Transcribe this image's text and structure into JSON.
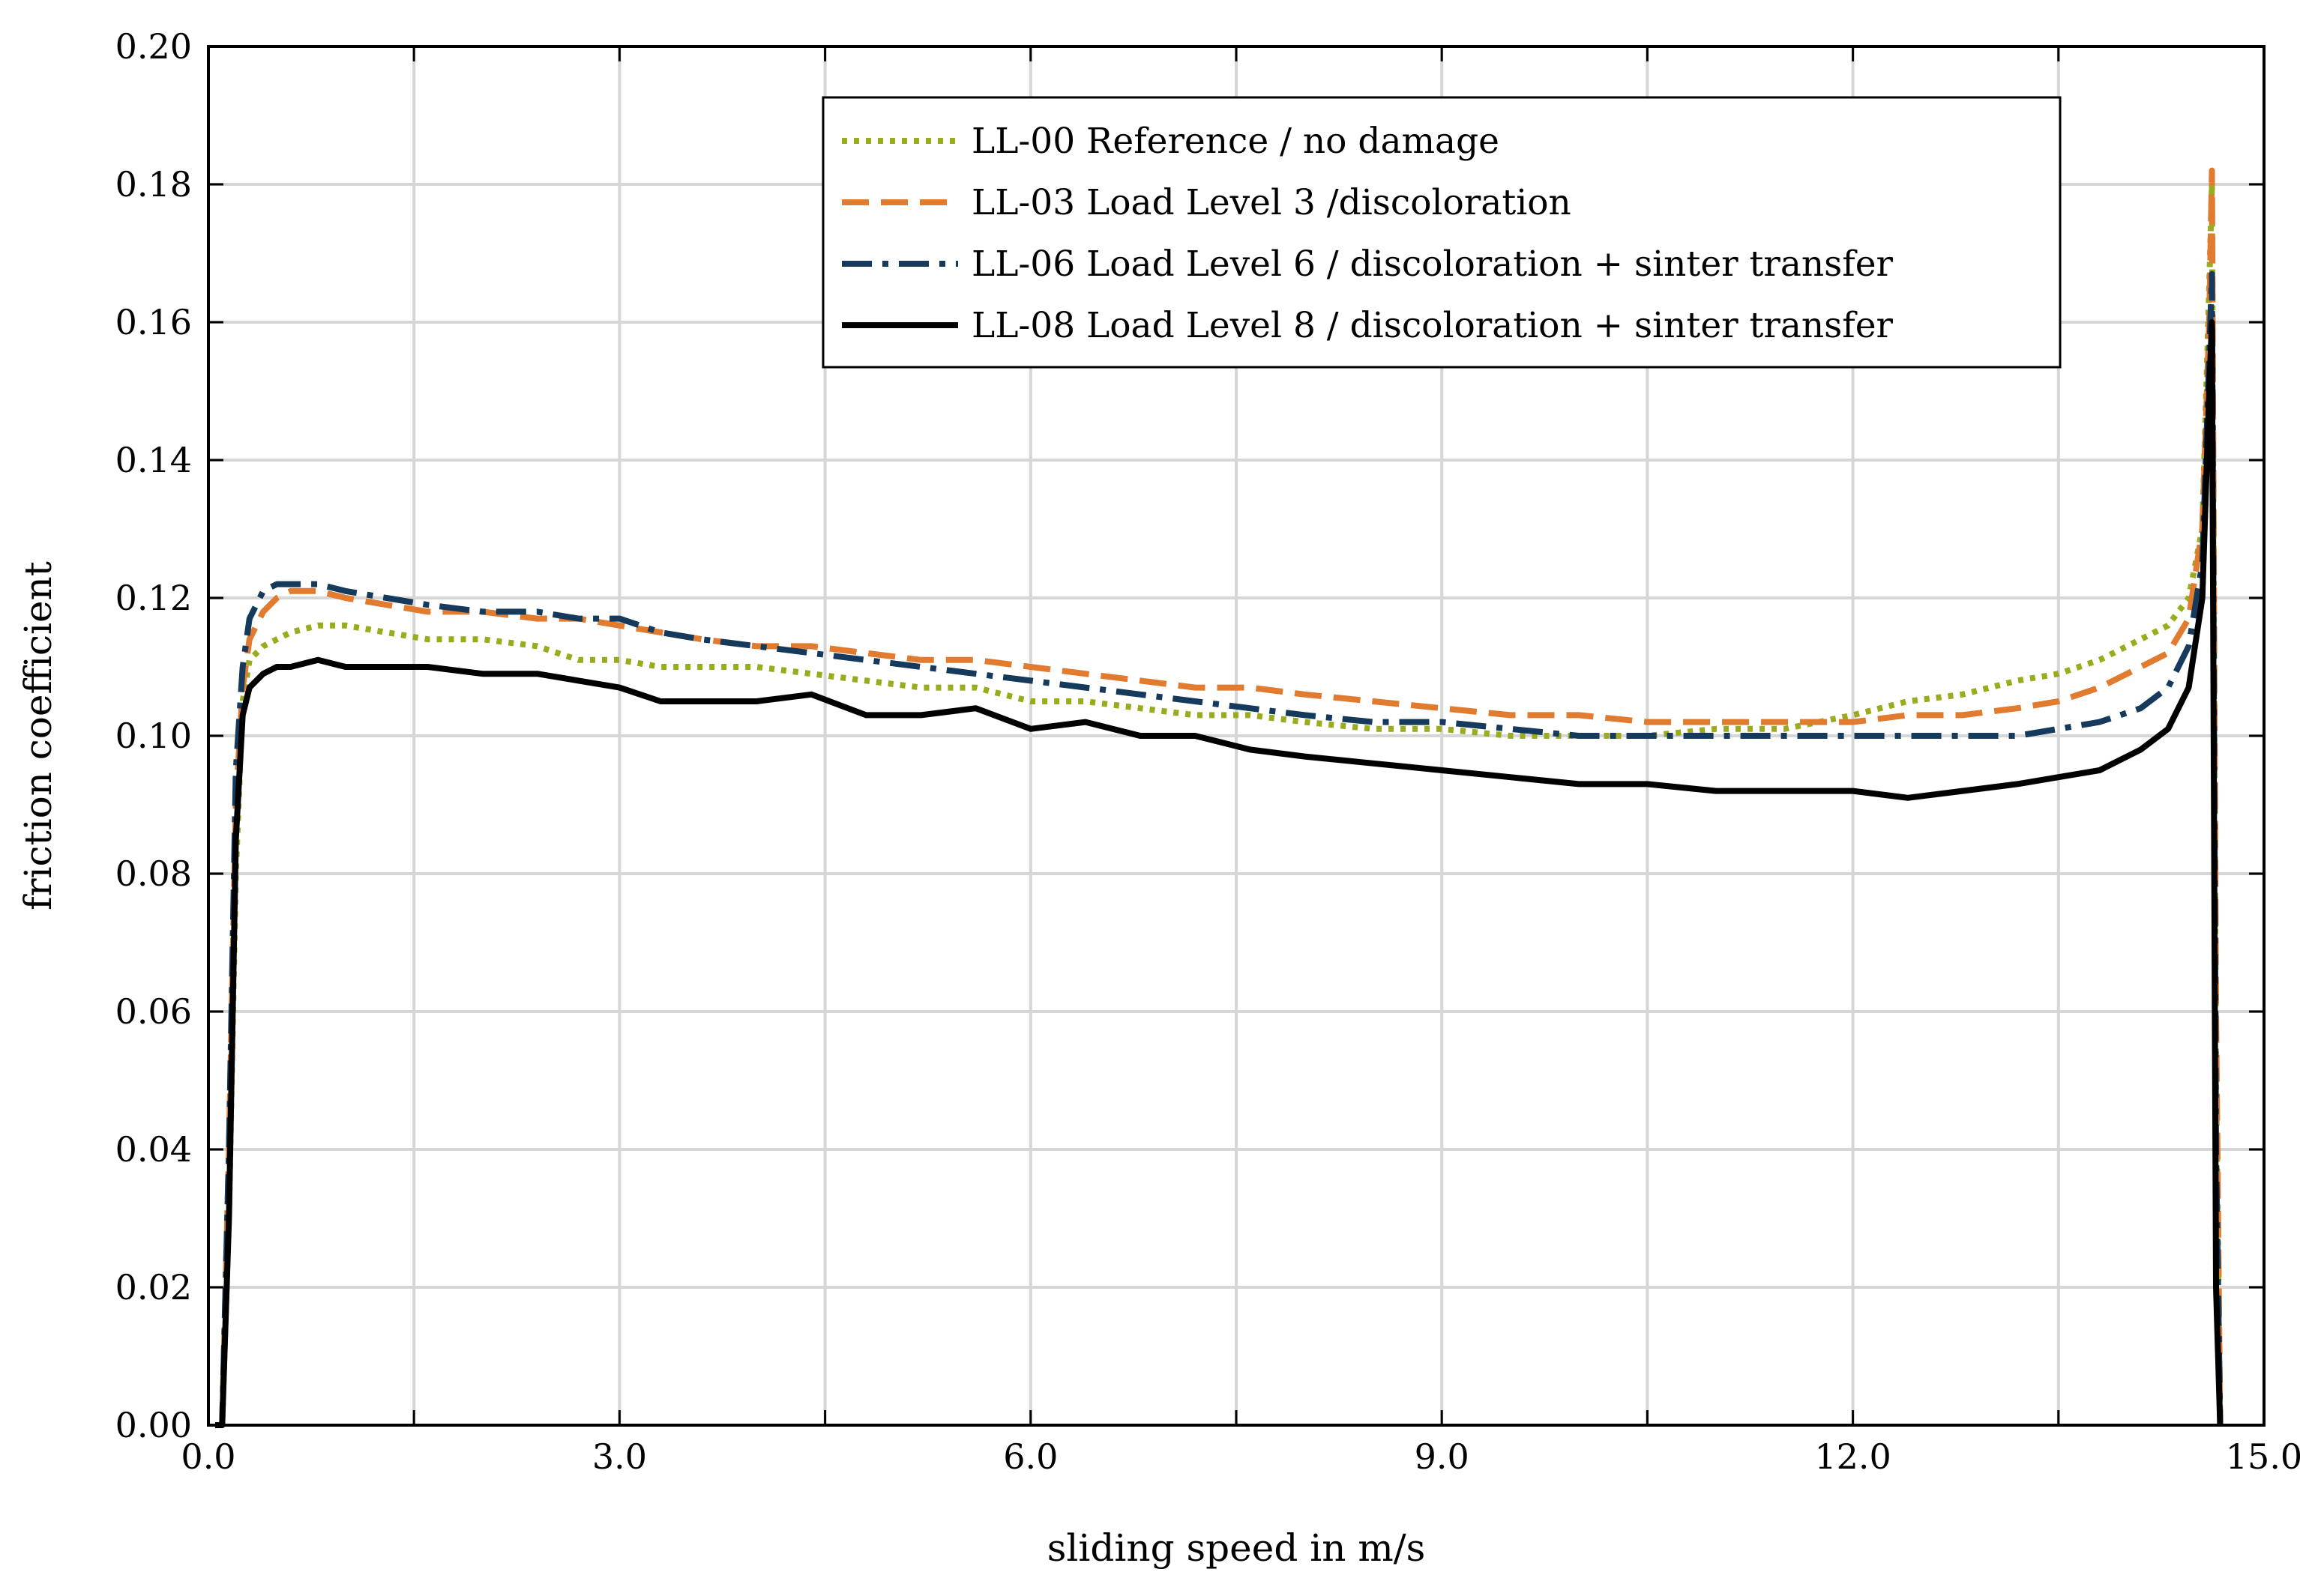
{
  "chart_data": {
    "type": "line",
    "title": "",
    "xlabel": "sliding speed in m/s",
    "ylabel": "friction coefficient",
    "xlim": [
      0,
      15
    ],
    "ylim": [
      0,
      0.2
    ],
    "grid": true,
    "legend_position": "top-right",
    "x_ticks": [
      0,
      1.5,
      3,
      4.5,
      6,
      7.5,
      9,
      10.5,
      12,
      13.5,
      15
    ],
    "x_tick_labels": [
      "0.0",
      "3.0",
      "6.0",
      "9.0",
      "12.0",
      "15.0"
    ],
    "x_tick_label_values": [
      0,
      3,
      6,
      9,
      12,
      15
    ],
    "y_ticks": [
      0,
      0.02,
      0.04,
      0.06,
      0.08,
      0.1,
      0.12,
      0.14,
      0.16,
      0.18,
      0.2
    ],
    "y_tick_labels": [
      "0.00",
      "0.02",
      "0.04",
      "0.06",
      "0.08",
      "0.10",
      "0.12",
      "0.14",
      "0.16",
      "0.18",
      "0.20"
    ],
    "series": [
      {
        "name": "LL-00 Reference / no damage",
        "color": "#9aab1e",
        "style": "dotted",
        "x": [
          0.05,
          0.1,
          0.15,
          0.2,
          0.25,
          0.3,
          0.4,
          0.5,
          0.6,
          0.8,
          1.0,
          1.3,
          1.6,
          2.0,
          2.4,
          2.7,
          3.0,
          3.3,
          3.6,
          4.0,
          4.4,
          4.8,
          5.2,
          5.6,
          6.0,
          6.4,
          6.8,
          7.2,
          7.6,
          8.0,
          8.5,
          9.0,
          9.5,
          10.0,
          10.5,
          11.0,
          11.5,
          12.0,
          12.4,
          12.8,
          13.2,
          13.5,
          13.8,
          14.1,
          14.3,
          14.45,
          14.55,
          14.6,
          14.62,
          14.65,
          14.68
        ],
        "y": [
          0.0,
          0.0,
          0.03,
          0.08,
          0.105,
          0.111,
          0.113,
          0.114,
          0.115,
          0.116,
          0.116,
          0.115,
          0.114,
          0.114,
          0.113,
          0.111,
          0.111,
          0.11,
          0.11,
          0.11,
          0.109,
          0.108,
          0.107,
          0.107,
          0.105,
          0.105,
          0.104,
          0.103,
          0.103,
          0.102,
          0.101,
          0.101,
          0.1,
          0.1,
          0.1,
          0.101,
          0.101,
          0.103,
          0.105,
          0.106,
          0.108,
          0.109,
          0.111,
          0.114,
          0.116,
          0.12,
          0.13,
          0.165,
          0.18,
          0.05,
          0.0
        ]
      },
      {
        "name": "LL-03 Load Level 3 /discoloration",
        "color": "#e07b30",
        "style": "dashed",
        "x": [
          0.05,
          0.1,
          0.15,
          0.2,
          0.25,
          0.3,
          0.4,
          0.5,
          0.6,
          0.8,
          1.0,
          1.3,
          1.6,
          2.0,
          2.4,
          2.7,
          3.0,
          3.3,
          3.6,
          4.0,
          4.4,
          4.8,
          5.2,
          5.6,
          6.0,
          6.4,
          6.8,
          7.2,
          7.6,
          8.0,
          8.5,
          9.0,
          9.5,
          10.0,
          10.5,
          11.0,
          11.5,
          12.0,
          12.4,
          12.8,
          13.2,
          13.5,
          13.8,
          14.1,
          14.3,
          14.45,
          14.55,
          14.6,
          14.62,
          14.65,
          14.68
        ],
        "y": [
          0.0,
          0.0,
          0.04,
          0.09,
          0.107,
          0.114,
          0.118,
          0.12,
          0.121,
          0.121,
          0.12,
          0.119,
          0.118,
          0.118,
          0.117,
          0.117,
          0.116,
          0.115,
          0.114,
          0.113,
          0.113,
          0.112,
          0.111,
          0.111,
          0.11,
          0.109,
          0.108,
          0.107,
          0.107,
          0.106,
          0.105,
          0.104,
          0.103,
          0.103,
          0.102,
          0.102,
          0.102,
          0.102,
          0.103,
          0.103,
          0.104,
          0.105,
          0.107,
          0.11,
          0.112,
          0.117,
          0.13,
          0.16,
          0.182,
          0.06,
          0.0
        ]
      },
      {
        "name": "LL-06 Load Level 6 / discoloration + sinter transfer",
        "color": "#153a5b",
        "style": "dashdot",
        "x": [
          0.05,
          0.1,
          0.15,
          0.2,
          0.25,
          0.3,
          0.4,
          0.5,
          0.6,
          0.8,
          1.0,
          1.3,
          1.6,
          2.0,
          2.4,
          2.7,
          3.0,
          3.3,
          3.6,
          4.0,
          4.4,
          4.8,
          5.2,
          5.6,
          6.0,
          6.4,
          6.8,
          7.2,
          7.6,
          8.0,
          8.5,
          9.0,
          9.5,
          10.0,
          10.5,
          11.0,
          11.5,
          12.0,
          12.4,
          12.8,
          13.2,
          13.5,
          13.8,
          14.1,
          14.3,
          14.45,
          14.55,
          14.6,
          14.62,
          14.65,
          14.68
        ],
        "y": [
          0.0,
          0.0,
          0.04,
          0.095,
          0.11,
          0.117,
          0.121,
          0.122,
          0.122,
          0.122,
          0.121,
          0.12,
          0.119,
          0.118,
          0.118,
          0.117,
          0.117,
          0.115,
          0.114,
          0.113,
          0.112,
          0.111,
          0.11,
          0.109,
          0.108,
          0.107,
          0.106,
          0.105,
          0.104,
          0.103,
          0.102,
          0.102,
          0.101,
          0.1,
          0.1,
          0.1,
          0.1,
          0.1,
          0.1,
          0.1,
          0.1,
          0.101,
          0.102,
          0.104,
          0.107,
          0.113,
          0.125,
          0.155,
          0.167,
          0.04,
          0.0
        ]
      },
      {
        "name": "LL-08 Load Level 8 / discoloration + sinter transfer",
        "color": "#000000",
        "style": "solid",
        "x": [
          0.05,
          0.1,
          0.15,
          0.2,
          0.25,
          0.3,
          0.4,
          0.5,
          0.6,
          0.8,
          1.0,
          1.3,
          1.6,
          2.0,
          2.4,
          2.7,
          3.0,
          3.3,
          3.6,
          4.0,
          4.4,
          4.8,
          5.2,
          5.6,
          6.0,
          6.4,
          6.8,
          7.2,
          7.6,
          8.0,
          8.5,
          9.0,
          9.5,
          10.0,
          10.5,
          11.0,
          11.5,
          12.0,
          12.4,
          12.8,
          13.2,
          13.5,
          13.8,
          14.1,
          14.3,
          14.45,
          14.55,
          14.6,
          14.62,
          14.65,
          14.68
        ],
        "y": [
          0.0,
          0.0,
          0.03,
          0.085,
          0.103,
          0.107,
          0.109,
          0.11,
          0.11,
          0.111,
          0.11,
          0.11,
          0.11,
          0.109,
          0.109,
          0.108,
          0.107,
          0.105,
          0.105,
          0.105,
          0.106,
          0.103,
          0.103,
          0.104,
          0.101,
          0.102,
          0.1,
          0.1,
          0.098,
          0.097,
          0.096,
          0.095,
          0.094,
          0.093,
          0.093,
          0.092,
          0.092,
          0.092,
          0.091,
          0.092,
          0.093,
          0.094,
          0.095,
          0.098,
          0.101,
          0.107,
          0.12,
          0.15,
          0.16,
          0.02,
          0.0
        ]
      }
    ]
  }
}
